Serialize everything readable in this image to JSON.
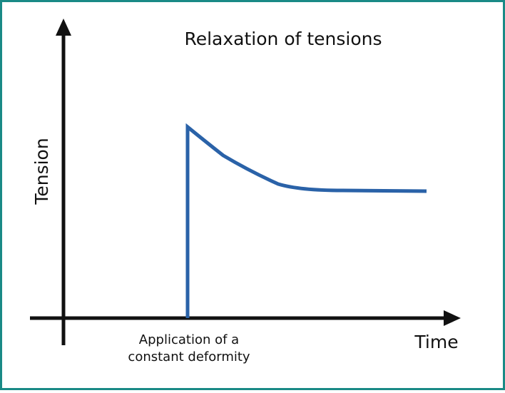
{
  "title": "Relaxation of tensions",
  "y_axis_label": "Tension",
  "x_axis_label": "Time",
  "annotation": [
    "Application of a",
    "constant deformity"
  ]
}
